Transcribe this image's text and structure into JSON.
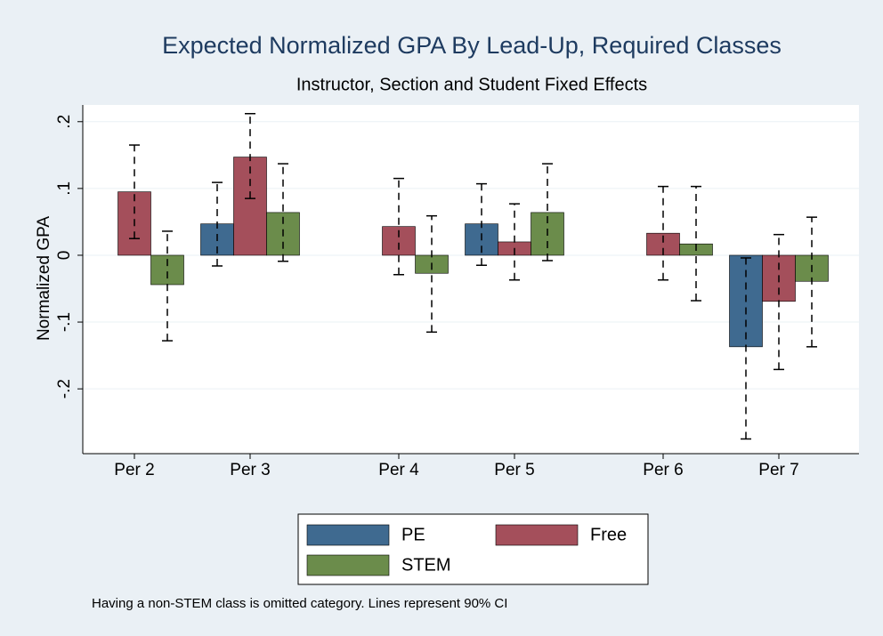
{
  "chart_data": {
    "type": "bar",
    "title": "Expected Normalized GPA By Lead-Up, Required Classes",
    "subtitle": "Instructor, Section and Student Fixed Effects",
    "ylabel": "Normalized GPA",
    "note": "Having a non-STEM class is omitted category.  Lines represent 90% CI",
    "categories": [
      "Per 2",
      "Per 3",
      "Per 4",
      "Per 5",
      "Per 6",
      "Per 7"
    ],
    "series": [
      {
        "name": "PE",
        "color": "#3f6a90",
        "values": [
          null,
          0.047,
          null,
          0.047,
          null,
          -0.137
        ],
        "lower": [
          null,
          -0.016,
          null,
          -0.015,
          null,
          -0.275
        ],
        "upper": [
          null,
          0.109,
          null,
          0.107,
          null,
          -0.004
        ]
      },
      {
        "name": "Free",
        "color": "#a44f5b",
        "values": [
          0.095,
          0.147,
          0.043,
          0.02,
          0.033,
          -0.069
        ],
        "lower": [
          0.025,
          0.085,
          -0.029,
          -0.037,
          -0.037,
          -0.171
        ],
        "upper": [
          0.165,
          0.212,
          0.115,
          0.077,
          0.103,
          0.031
        ]
      },
      {
        "name": "STEM",
        "color": "#6b8c4b",
        "values": [
          -0.044,
          0.064,
          -0.027,
          0.064,
          0.017,
          -0.039
        ],
        "lower": [
          -0.128,
          -0.009,
          -0.115,
          -0.008,
          -0.068,
          -0.137
        ],
        "upper": [
          0.036,
          0.137,
          0.059,
          0.137,
          0.103,
          0.057
        ]
      }
    ],
    "ylim": [
      -0.297,
      0.225
    ],
    "yticks": [
      {
        "value": -0.2,
        "label": "-.2"
      },
      {
        "value": -0.1,
        "label": "-.1"
      },
      0,
      {
        "value": 0.1,
        "label": ".1"
      },
      {
        "value": 0.2,
        "label": ".2"
      }
    ],
    "grid": true,
    "legend": "bottom"
  }
}
